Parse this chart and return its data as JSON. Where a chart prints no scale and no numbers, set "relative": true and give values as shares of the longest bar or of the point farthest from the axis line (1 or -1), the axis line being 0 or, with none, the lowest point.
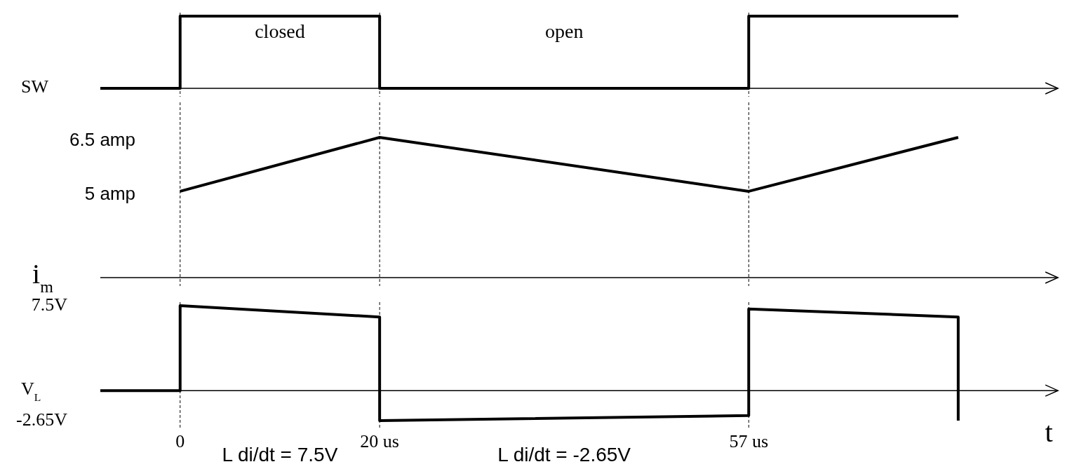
{
  "chart_data": [
    {
      "type": "line",
      "ylabel": "SW",
      "relative": true,
      "xlim": [
        -8,
        88
      ],
      "xticks": [
        0,
        20,
        57
      ],
      "grid": "x",
      "tick_labels": false,
      "line_style": "solid",
      "series": [
        {
          "color": "#000000",
          "x": [
            -8,
            0,
            0,
            20,
            20,
            57,
            57,
            78
          ],
          "values": [
            0,
            0,
            1,
            1,
            0,
            0,
            1,
            1
          ]
        }
      ],
      "annotations": [
        "closed",
        "open"
      ]
    },
    {
      "type": "line",
      "ylabel": "i$_{m}$",
      "xlim": [
        -8,
        88
      ],
      "ylim": [
        2.6,
        6.5
      ],
      "yticks": [
        {
          "value": 5,
          "label": "5 amp"
        },
        {
          "value": 6.5,
          "label": "6.5 amp"
        }
      ],
      "xticks": [
        0,
        20,
        57
      ],
      "grid": "x",
      "tick_labels": "y",
      "line_style": "solid",
      "series": [
        {
          "color": "#000000",
          "x": [
            0,
            20,
            57,
            78
          ],
          "values": [
            5,
            6.5,
            5,
            6.5
          ]
        }
      ]
    },
    {
      "type": "line",
      "ylabel": "V$_{L}$",
      "xlabel": "t",
      "xlim": [
        -8,
        88
      ],
      "ylim": [
        -2.65,
        7.5
      ],
      "yticks": [
        {
          "value": 7.5,
          "label": "7.5V"
        },
        {
          "value": -2.65,
          "label": "-2.65V"
        }
      ],
      "xticks": [
        0,
        {
          "value": 20,
          "label": "20 us"
        },
        {
          "value": 57,
          "label": "57 us"
        }
      ],
      "grid": "x",
      "line_style": "solid",
      "series": [
        {
          "color": "#000000",
          "x": [
            -8,
            0,
            0,
            20,
            20,
            57,
            57,
            78,
            78
          ],
          "values": [
            0,
            0,
            7.5,
            6.5,
            -2.65,
            -2.2,
            7.2,
            6.5,
            -2.65
          ]
        }
      ],
      "annotations": [
        "L di/dt = 7.5V",
        "L di/dt = -2.65V"
      ]
    }
  ]
}
